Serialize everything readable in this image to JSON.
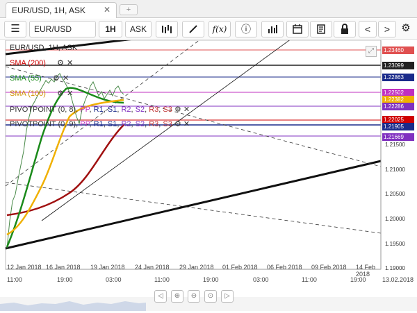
{
  "tab": {
    "title": "EUR/USD, 1H, ASK",
    "close": "✕",
    "new_tab": "+"
  },
  "toolbar": {
    "menu_icon": "☰",
    "symbol": "EUR/USD",
    "period": "1H",
    "side": "ASK",
    "fx": "f(x)",
    "info": "ⓘ",
    "prev": "<",
    "next": ">",
    "gear": "⚙"
  },
  "chart": {
    "header": "EUR/USD, 1H, ASK",
    "indicators": [
      {
        "label": "SMA (200)",
        "color": "#d00000"
      },
      {
        "label": "SMA (55)",
        "color": "#1a8a1a"
      },
      {
        "label": "SMA (100)",
        "color": "#f0b000"
      }
    ],
    "pivots": [
      {
        "label": "PIVOTPOINT (0, 8)",
        "pp": "PP",
        "r1": "R1",
        "s1": "S1",
        "r2": "R2",
        "s2": "S2",
        "r3": "R3",
        "s3": "S3"
      },
      {
        "label": "PIVOTPOINT (0, 9)",
        "pp": "PP",
        "r1": "R1",
        "s1": "S1",
        "r2": "R2",
        "s2": "S2",
        "r3": "R3",
        "s3": "S3"
      }
    ],
    "price_boxes": [
      {
        "value": "1.23460",
        "color": "#e05050"
      },
      {
        "value": "1.23099",
        "color": "#222222"
      },
      {
        "value": "1.22863",
        "color": "#1a2a8a"
      },
      {
        "value": "1.22502",
        "color": "#c030c0"
      },
      {
        "value": "1.22382",
        "color": "#f0b000"
      },
      {
        "value": "1.22286",
        "color": "#8030c0"
      },
      {
        "value": "1.22025",
        "color": "#d00000"
      },
      {
        "value": "1.21905",
        "color": "#1a2a8a"
      },
      {
        "value": "1.21669",
        "color": "#8030c0"
      }
    ],
    "y_ticks": [
      "1.21500",
      "1.21000",
      "1.20500",
      "1.20000",
      "1.19500",
      "1.19000"
    ],
    "date_labels": [
      "12 Jan 2018",
      "16 Jan 2018",
      "19 Jan 2018",
      "24 Jan 2018",
      "29 Jan 2018",
      "01 Feb 2018",
      "06 Feb 2018",
      "09 Feb 2018",
      "14 Feb 2018"
    ],
    "time_labels": [
      "11:00",
      "19:00",
      "03:00",
      "11:00",
      "19:00",
      "03:00",
      "11:00",
      "19:00"
    ],
    "date_corner": "13.02.2018"
  }
}
